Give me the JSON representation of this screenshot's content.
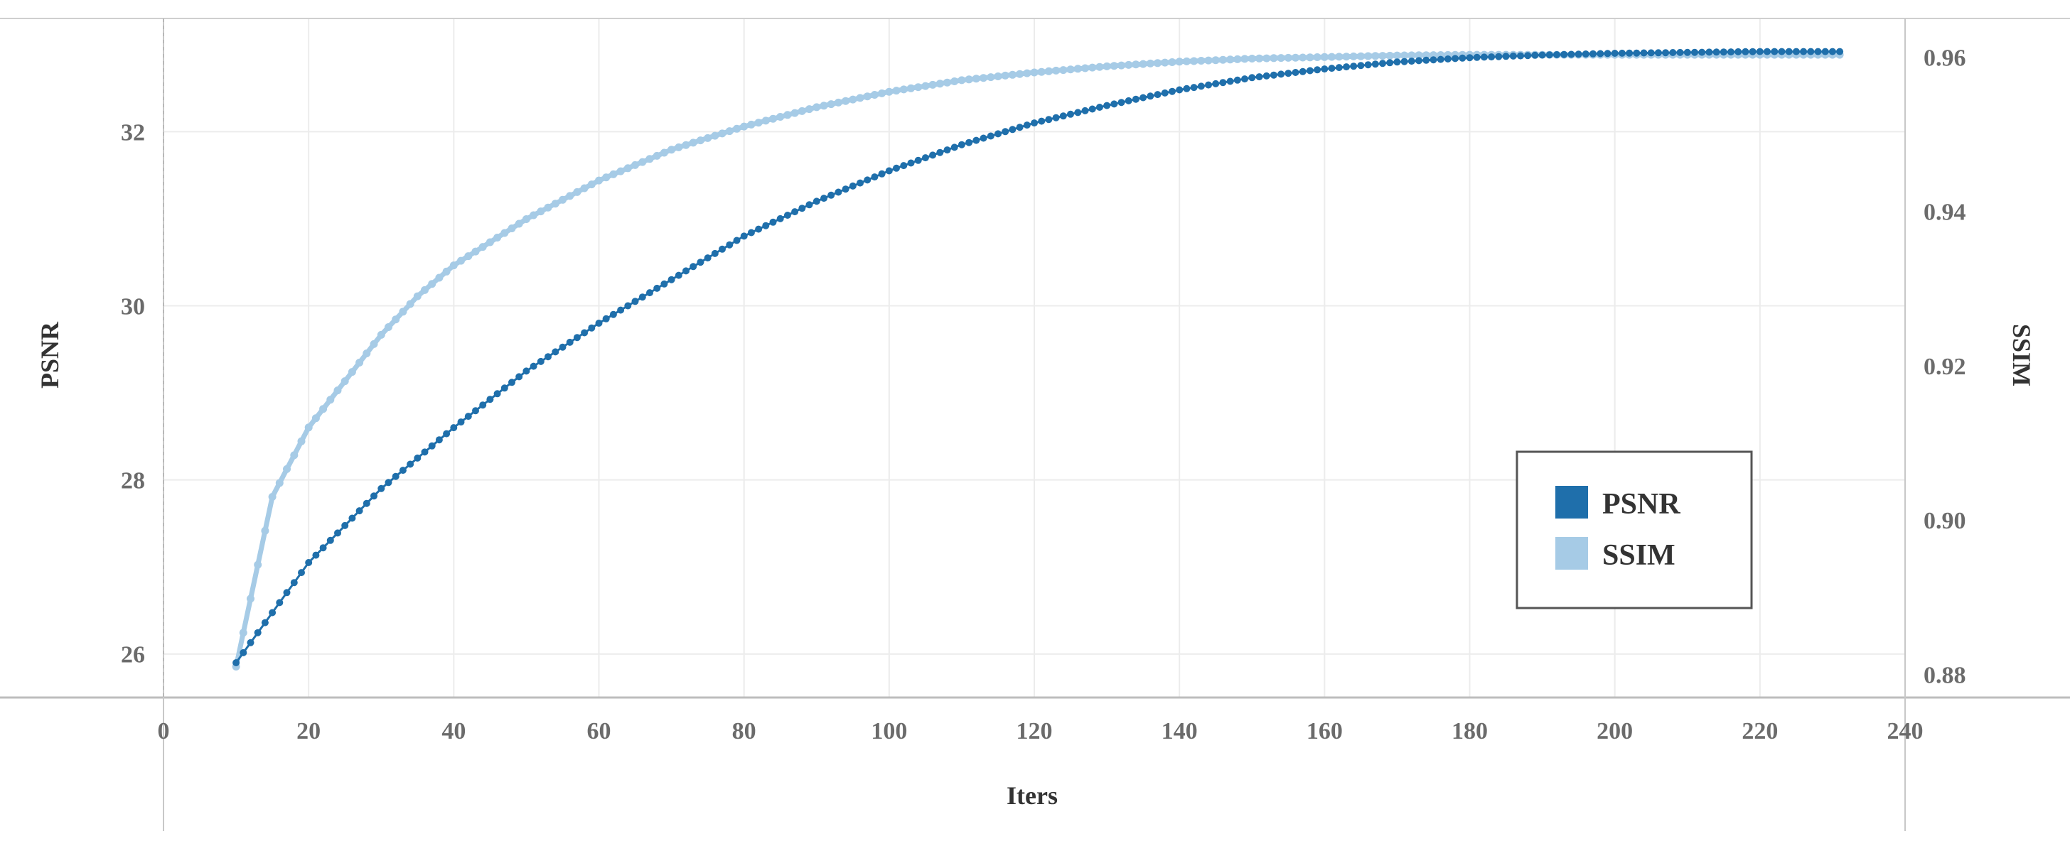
{
  "chart_data": {
    "type": "line",
    "xlabel": "Iters",
    "ylabel_left": "PSNR",
    "ylabel_right": "SSIM",
    "xlim": [
      0,
      240
    ],
    "ylim_left": [
      25.5,
      33.3
    ],
    "ylim_right": [
      0.877,
      0.965
    ],
    "xticks": [
      "0",
      "20",
      "40",
      "60",
      "80",
      "100",
      "120",
      "140",
      "160",
      "180",
      "200",
      "220",
      "240"
    ],
    "yticks_left": [
      "26",
      "28",
      "30",
      "32"
    ],
    "yticks_right": [
      "0.88",
      "0.90",
      "0.92",
      "0.94",
      "0.96"
    ],
    "grid": true,
    "legend_position": "bottom-right",
    "x_range": [
      10,
      231
    ],
    "series": [
      {
        "name": "PSNR",
        "axis": "left",
        "color": "#1f6fab",
        "x": [
          10,
          20,
          30,
          40,
          50,
          60,
          70,
          80,
          90,
          100,
          110,
          120,
          130,
          140,
          150,
          160,
          170,
          180,
          190,
          200,
          210,
          220,
          231
        ],
        "values": [
          25.9,
          27.05,
          27.9,
          28.6,
          29.25,
          29.8,
          30.3,
          30.8,
          31.2,
          31.55,
          31.85,
          32.1,
          32.3,
          32.48,
          32.62,
          32.72,
          32.8,
          32.85,
          32.88,
          32.9,
          32.91,
          32.92,
          32.92
        ]
      },
      {
        "name": "SSIM",
        "axis": "right",
        "color": "#a6cbe6",
        "x": [
          10,
          15,
          20,
          25,
          30,
          35,
          40,
          50,
          60,
          70,
          80,
          90,
          100,
          110,
          120,
          130,
          140,
          150,
          160,
          170,
          180,
          190,
          200,
          210,
          220,
          231
        ],
        "values": [
          0.881,
          0.903,
          0.912,
          0.918,
          0.924,
          0.929,
          0.933,
          0.939,
          0.944,
          0.948,
          0.951,
          0.9535,
          0.9555,
          0.957,
          0.958,
          0.9588,
          0.9594,
          0.9598,
          0.96,
          0.9602,
          0.9603,
          0.9603,
          0.9603,
          0.9603,
          0.9603,
          0.9603
        ]
      }
    ]
  }
}
